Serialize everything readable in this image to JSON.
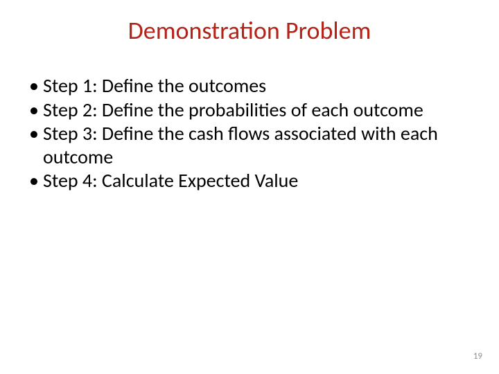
{
  "slide": {
    "title": "Demonstration Problem",
    "title_color": "#b32317",
    "title_fontsize": 36,
    "body_color": "#000000",
    "body_fontsize": 28,
    "bullets": [
      "Step 1:  Define the outcomes",
      "Step 2:  Define the probabilities of each outcome",
      "Step 3:  Define the cash flows associated with each outcome",
      "Step 4:  Calculate Expected Value"
    ],
    "page_number": "19",
    "page_number_color": "#8f8f8f",
    "page_number_fontsize": 13,
    "background_color": "#ffffff"
  }
}
